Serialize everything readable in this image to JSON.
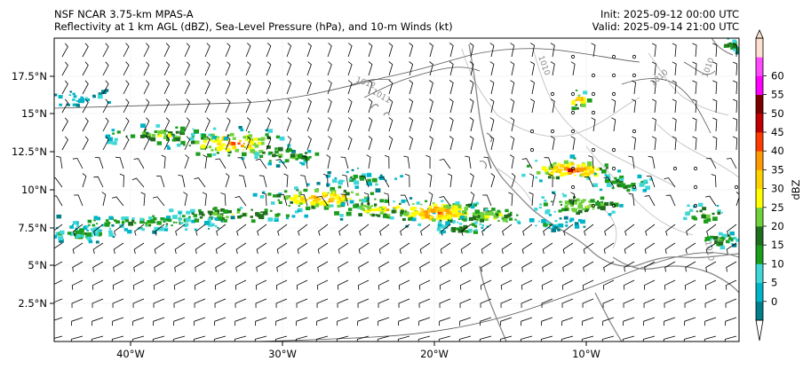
{
  "titles": {
    "left_line1": "NSF NCAR 3.75-km MPAS-A",
    "left_line2": "Reflectivity at 1 km AGL (dBZ), Sea-Level Pressure (hPa), and 10-m Winds (kt)",
    "right_line1": "Init: 2025-09-12 00:00 UTC",
    "right_line2": "Valid: 2025-09-14 21:00 UTC"
  },
  "axes": {
    "x_ticks": [
      "40°W",
      "30°W",
      "20°W",
      "10°W"
    ],
    "y_ticks": [
      "17.5°N",
      "15°N",
      "12.5°N",
      "10°N",
      "7.5°N",
      "5°N",
      "2.5°N"
    ]
  },
  "colorbar": {
    "label": "dBZ",
    "ticks": [
      "0",
      "5",
      "10",
      "15",
      "20",
      "25",
      "30",
      "35",
      "40",
      "45",
      "50",
      "55",
      "60"
    ],
    "colors": [
      "#007f8a",
      "#00b4c8",
      "#3fd7d7",
      "#1b9e1b",
      "#1e6e1e",
      "#6fd23c",
      "#ffff00",
      "#ffd200",
      "#ff9a00",
      "#ff3c00",
      "#c00000",
      "#7a0000",
      "#ff00ff",
      "#ff49ff",
      "#ffe0d0"
    ]
  },
  "contour_labels": [
    "1010",
    "1010",
    "1010",
    "1010",
    "1011",
    "1012"
  ],
  "colors": {
    "coastline": "#888888",
    "isobar": "#555555",
    "border": "#bbbbbb"
  }
}
